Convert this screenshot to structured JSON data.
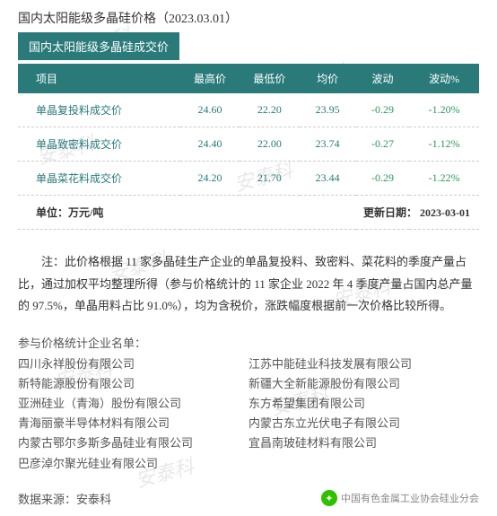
{
  "title": "国内太阳能级多晶硅价格（2023.03.01）",
  "subtitle": "国内太阳能级多晶硅成交价",
  "watermark_text": "安泰科",
  "columns": [
    "项目",
    "最高价",
    "最低价",
    "均价",
    "波动",
    "波动%"
  ],
  "rows": [
    {
      "name": "单晶复投料成交价",
      "high": "24.60",
      "low": "22.20",
      "avg": "23.95",
      "chg": "-0.29",
      "pct": "-1.20%"
    },
    {
      "name": "单晶致密料成交价",
      "high": "24.40",
      "low": "22.00",
      "avg": "23.74",
      "chg": "-0.27",
      "pct": "-1.12%"
    },
    {
      "name": "单晶菜花料成交价",
      "high": "24.20",
      "low": "21.70",
      "avg": "23.44",
      "chg": "-0.29",
      "pct": "-1.22%"
    }
  ],
  "unit_label": "单位：万元/吨",
  "update_label": "更新日期：",
  "update_date": "2023-03-01",
  "note": "注：此价格根据 11 家多晶硅生产企业的单晶复投料、致密料、菜花料的季度产量占比，通过加权平均整理所得（参与价格统计的 11 家企业 2022 年 4 季度产量占国内总产量的 97.5%，单晶用料占比 91.0%），均为含税价，涨跌幅度根据前一次价格比较所得。",
  "companies_title": "参与价格统计企业名单：",
  "companies_left": [
    "四川永祥股份有限公司",
    "新特能源股份有限公司",
    "亚洲硅业（青海）股份有限公司",
    "青海丽豪半导体材料有限公司",
    "内蒙古鄂尔多斯多晶硅业有限公司",
    "巴彦淖尔聚光硅业有限公司"
  ],
  "companies_right": [
    "江苏中能硅业科技发展有限公司",
    "新疆大全新能源股份有限公司",
    "东方希望集团有限公司",
    "内蒙古东立光伏电子有限公司",
    "宜昌南玻硅材料有限公司"
  ],
  "source_label": "数据来源：安泰科",
  "wechat_label": "中国有色金属工业协会硅业分会",
  "colors": {
    "teal": "#2a7a7a",
    "green": "#2a9a5a",
    "wechat_green": "#2dc100"
  }
}
